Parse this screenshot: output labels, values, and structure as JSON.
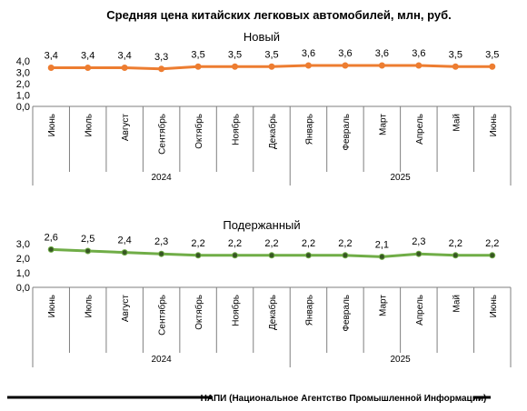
{
  "chart_data": [
    {
      "type": "line",
      "title": "Средняя цена китайских легковых автомобилей, млн, руб.",
      "subtitle": "Новый",
      "categories": [
        "Июнь",
        "Июль",
        "Август",
        "Сентябрь",
        "Октябрь",
        "Ноябрь",
        "Декабрь",
        "Январь",
        "Февраль",
        "Март",
        "Апрель",
        "Май",
        "Июнь"
      ],
      "values": [
        3.4,
        3.4,
        3.4,
        3.3,
        3.5,
        3.5,
        3.5,
        3.6,
        3.6,
        3.6,
        3.6,
        3.5,
        3.5
      ],
      "data_labels": [
        "3,4",
        "3,4",
        "3,4",
        "3,3",
        "3,5",
        "3,5",
        "3,5",
        "3,6",
        "3,6",
        "3,6",
        "3,6",
        "3,5",
        "3,5"
      ],
      "yticks": [
        "0,0",
        "1,0",
        "2,0",
        "3,0",
        "4,0"
      ],
      "ylim": [
        0,
        4
      ],
      "year_groups": [
        {
          "label": "2024",
          "count": 7
        },
        {
          "label": "2025",
          "count": 6
        }
      ],
      "color": "#ED7D31",
      "grid": false
    },
    {
      "type": "line",
      "subtitle": "Подержанный",
      "categories": [
        "Июнь",
        "Июль",
        "Август",
        "Сентябрь",
        "Октябрь",
        "Ноябрь",
        "Декабрь",
        "Январь",
        "Февраль",
        "Март",
        "Апрель",
        "Май",
        "Июнь"
      ],
      "values": [
        2.6,
        2.5,
        2.4,
        2.3,
        2.2,
        2.2,
        2.2,
        2.2,
        2.2,
        2.1,
        2.3,
        2.2,
        2.2
      ],
      "data_labels": [
        "2,6",
        "2,5",
        "2,4",
        "2,3",
        "2,2",
        "2,2",
        "2,2",
        "2,2",
        "2,2",
        "2,1",
        "2,3",
        "2,2",
        "2,2"
      ],
      "yticks": [
        "0,0",
        "1,0",
        "2,0",
        "3,0"
      ],
      "ylim": [
        0,
        3
      ],
      "year_groups": [
        {
          "label": "2024",
          "count": 7
        },
        {
          "label": "2025",
          "count": 6
        }
      ],
      "color": "#70AD47",
      "marker_color": "#375623",
      "grid": false
    }
  ],
  "source": "НАПИ (Национальное Агентство Промышленной Информации)"
}
